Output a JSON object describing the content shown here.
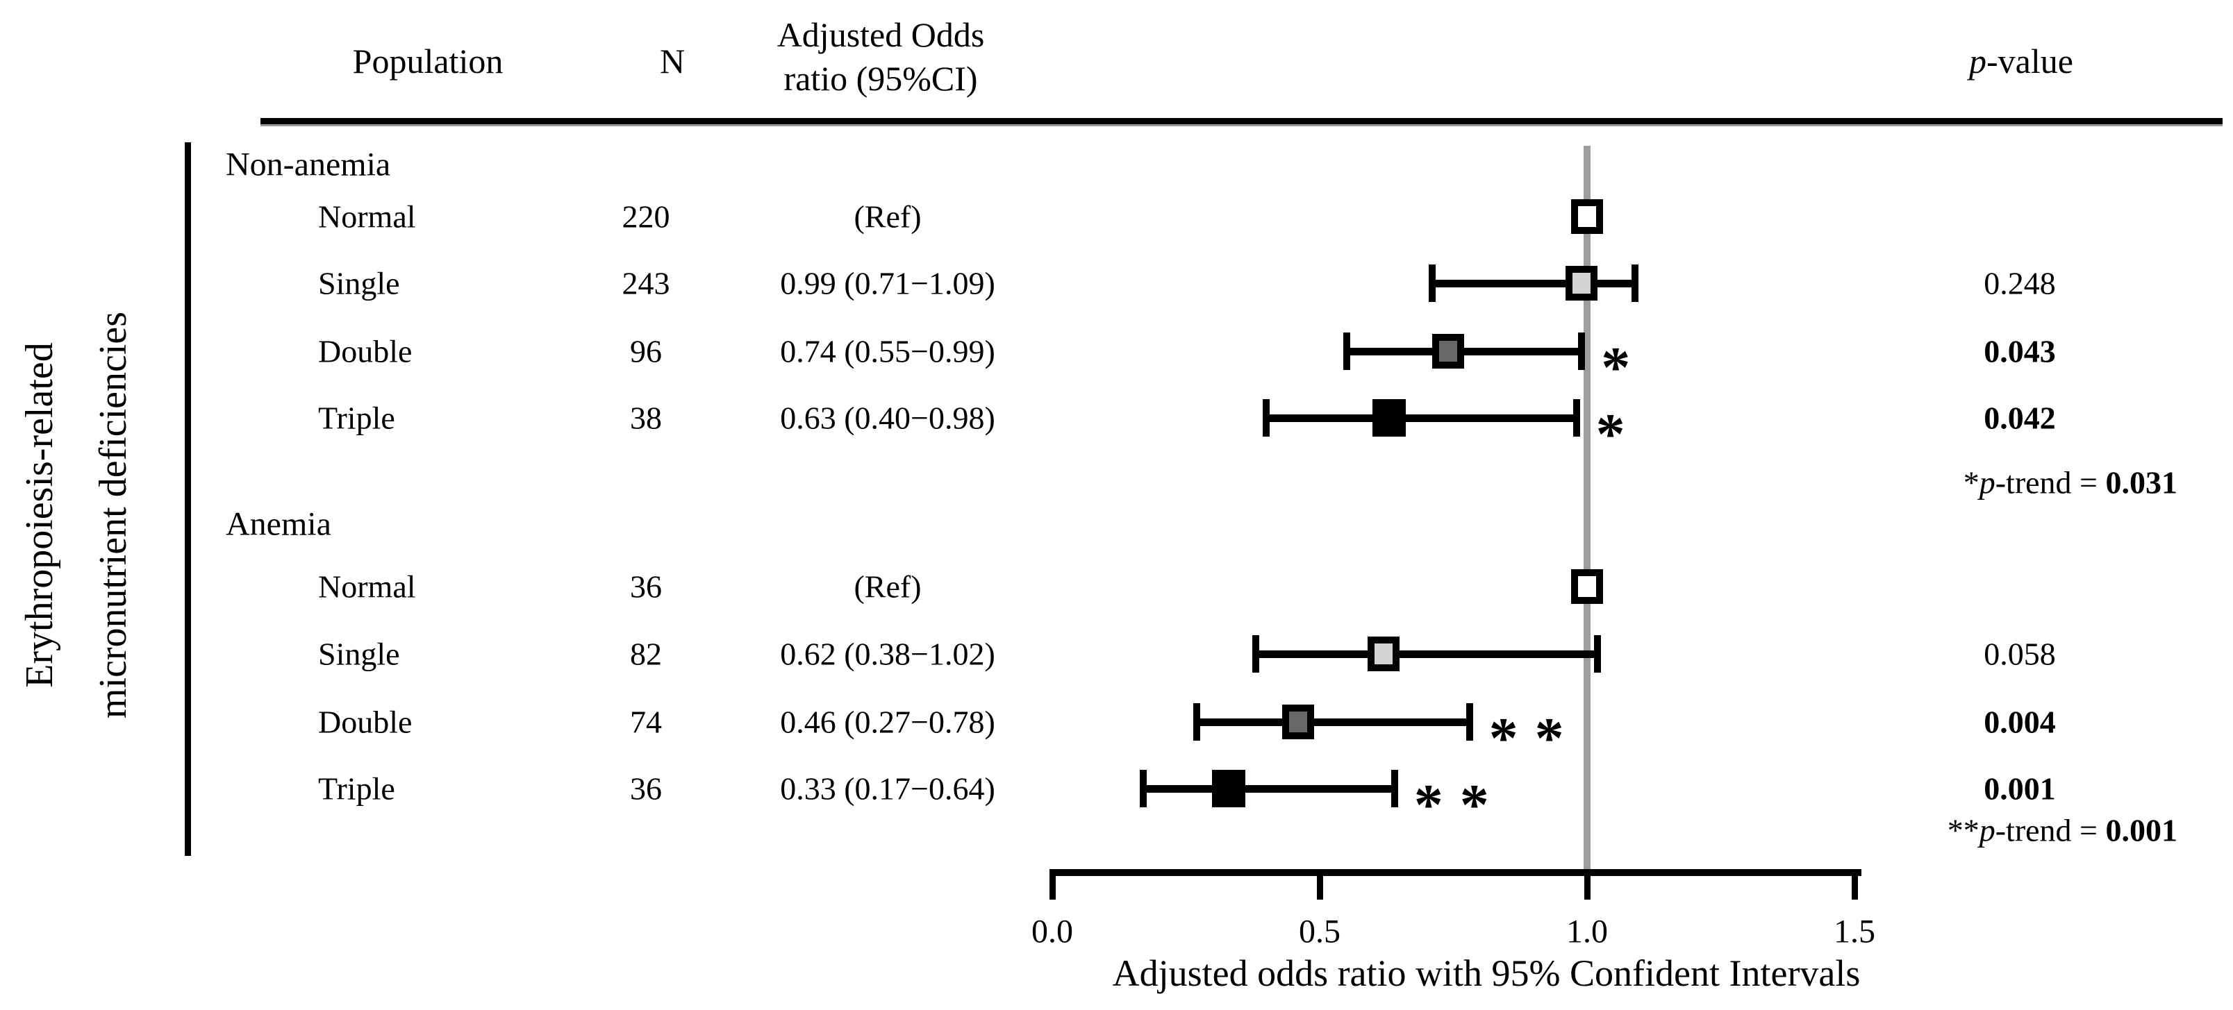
{
  "figure": {
    "y_axis_label_line1": "Erythropoiesis-related",
    "y_axis_label_line2": "micronutrient deficiencies"
  },
  "header": {
    "population": "Population",
    "n": "N",
    "or_line1": "Adjusted Odds",
    "or_line2": "ratio (95%CI)",
    "p_italic": "p",
    "p_rest": "-value"
  },
  "chart_data": {
    "type": "scatter",
    "variant": "forest-plot",
    "xlabel": "Adjusted odds ratio with 95% Confident Intervals",
    "xlim": [
      0.0,
      1.5
    ],
    "x_ticks": [
      0.0,
      0.5,
      1.0,
      1.5
    ],
    "x_tick_labels": [
      "0.0",
      "0.5",
      "1.0",
      "1.5"
    ],
    "reference_line_x": 1.0,
    "reference_line_color": "#9e9e9e",
    "marker_colors": {
      "white": "#ffffff",
      "lightgray": "#d3d3d3",
      "darkgray": "#686868",
      "black": "#000000"
    },
    "groups": [
      {
        "name": "Non-anemia",
        "p_trend_prefix": "*",
        "p_trend_mid": "-trend = ",
        "p_trend_value": "0.031",
        "rows": [
          {
            "label": "Normal",
            "n": "220",
            "or": 1.0,
            "lo": null,
            "hi": null,
            "or_text": "(Ref)",
            "p": "",
            "p_bold": false,
            "marker": "white",
            "sig": ""
          },
          {
            "label": "Single",
            "n": "243",
            "or": 0.99,
            "lo": 0.71,
            "hi": 1.09,
            "or_text": "0.99 (0.71−1.09)",
            "p": "0.248",
            "p_bold": false,
            "marker": "lightgray",
            "sig": ""
          },
          {
            "label": "Double",
            "n": "96",
            "or": 0.74,
            "lo": 0.55,
            "hi": 0.99,
            "or_text": "0.74 (0.55−0.99)",
            "p": "0.043",
            "p_bold": true,
            "marker": "darkgray",
            "sig": "*"
          },
          {
            "label": "Triple",
            "n": "38",
            "or": 0.63,
            "lo": 0.4,
            "hi": 0.98,
            "or_text": "0.63 (0.40−0.98)",
            "p": "0.042",
            "p_bold": true,
            "marker": "black",
            "sig": "*"
          }
        ]
      },
      {
        "name": "Anemia",
        "p_trend_prefix": "**",
        "p_trend_mid": "-trend = ",
        "p_trend_value": "0.001",
        "rows": [
          {
            "label": "Normal",
            "n": "36",
            "or": 1.0,
            "lo": null,
            "hi": null,
            "or_text": "(Ref)",
            "p": "",
            "p_bold": false,
            "marker": "white",
            "sig": ""
          },
          {
            "label": "Single",
            "n": "82",
            "or": 0.62,
            "lo": 0.38,
            "hi": 1.02,
            "or_text": "0.62 (0.38−1.02)",
            "p": "0.058",
            "p_bold": false,
            "marker": "lightgray",
            "sig": ""
          },
          {
            "label": "Double",
            "n": "74",
            "or": 0.46,
            "lo": 0.27,
            "hi": 0.78,
            "or_text": "0.46 (0.27−0.78)",
            "p": "0.004",
            "p_bold": true,
            "marker": "darkgray",
            "sig": "**"
          },
          {
            "label": "Triple",
            "n": "36",
            "or": 0.33,
            "lo": 0.17,
            "hi": 0.64,
            "or_text": "0.33 (0.17−0.64)",
            "p": "0.001",
            "p_bold": true,
            "marker": "black",
            "sig": "**"
          }
        ]
      }
    ],
    "p_italic": "p"
  }
}
